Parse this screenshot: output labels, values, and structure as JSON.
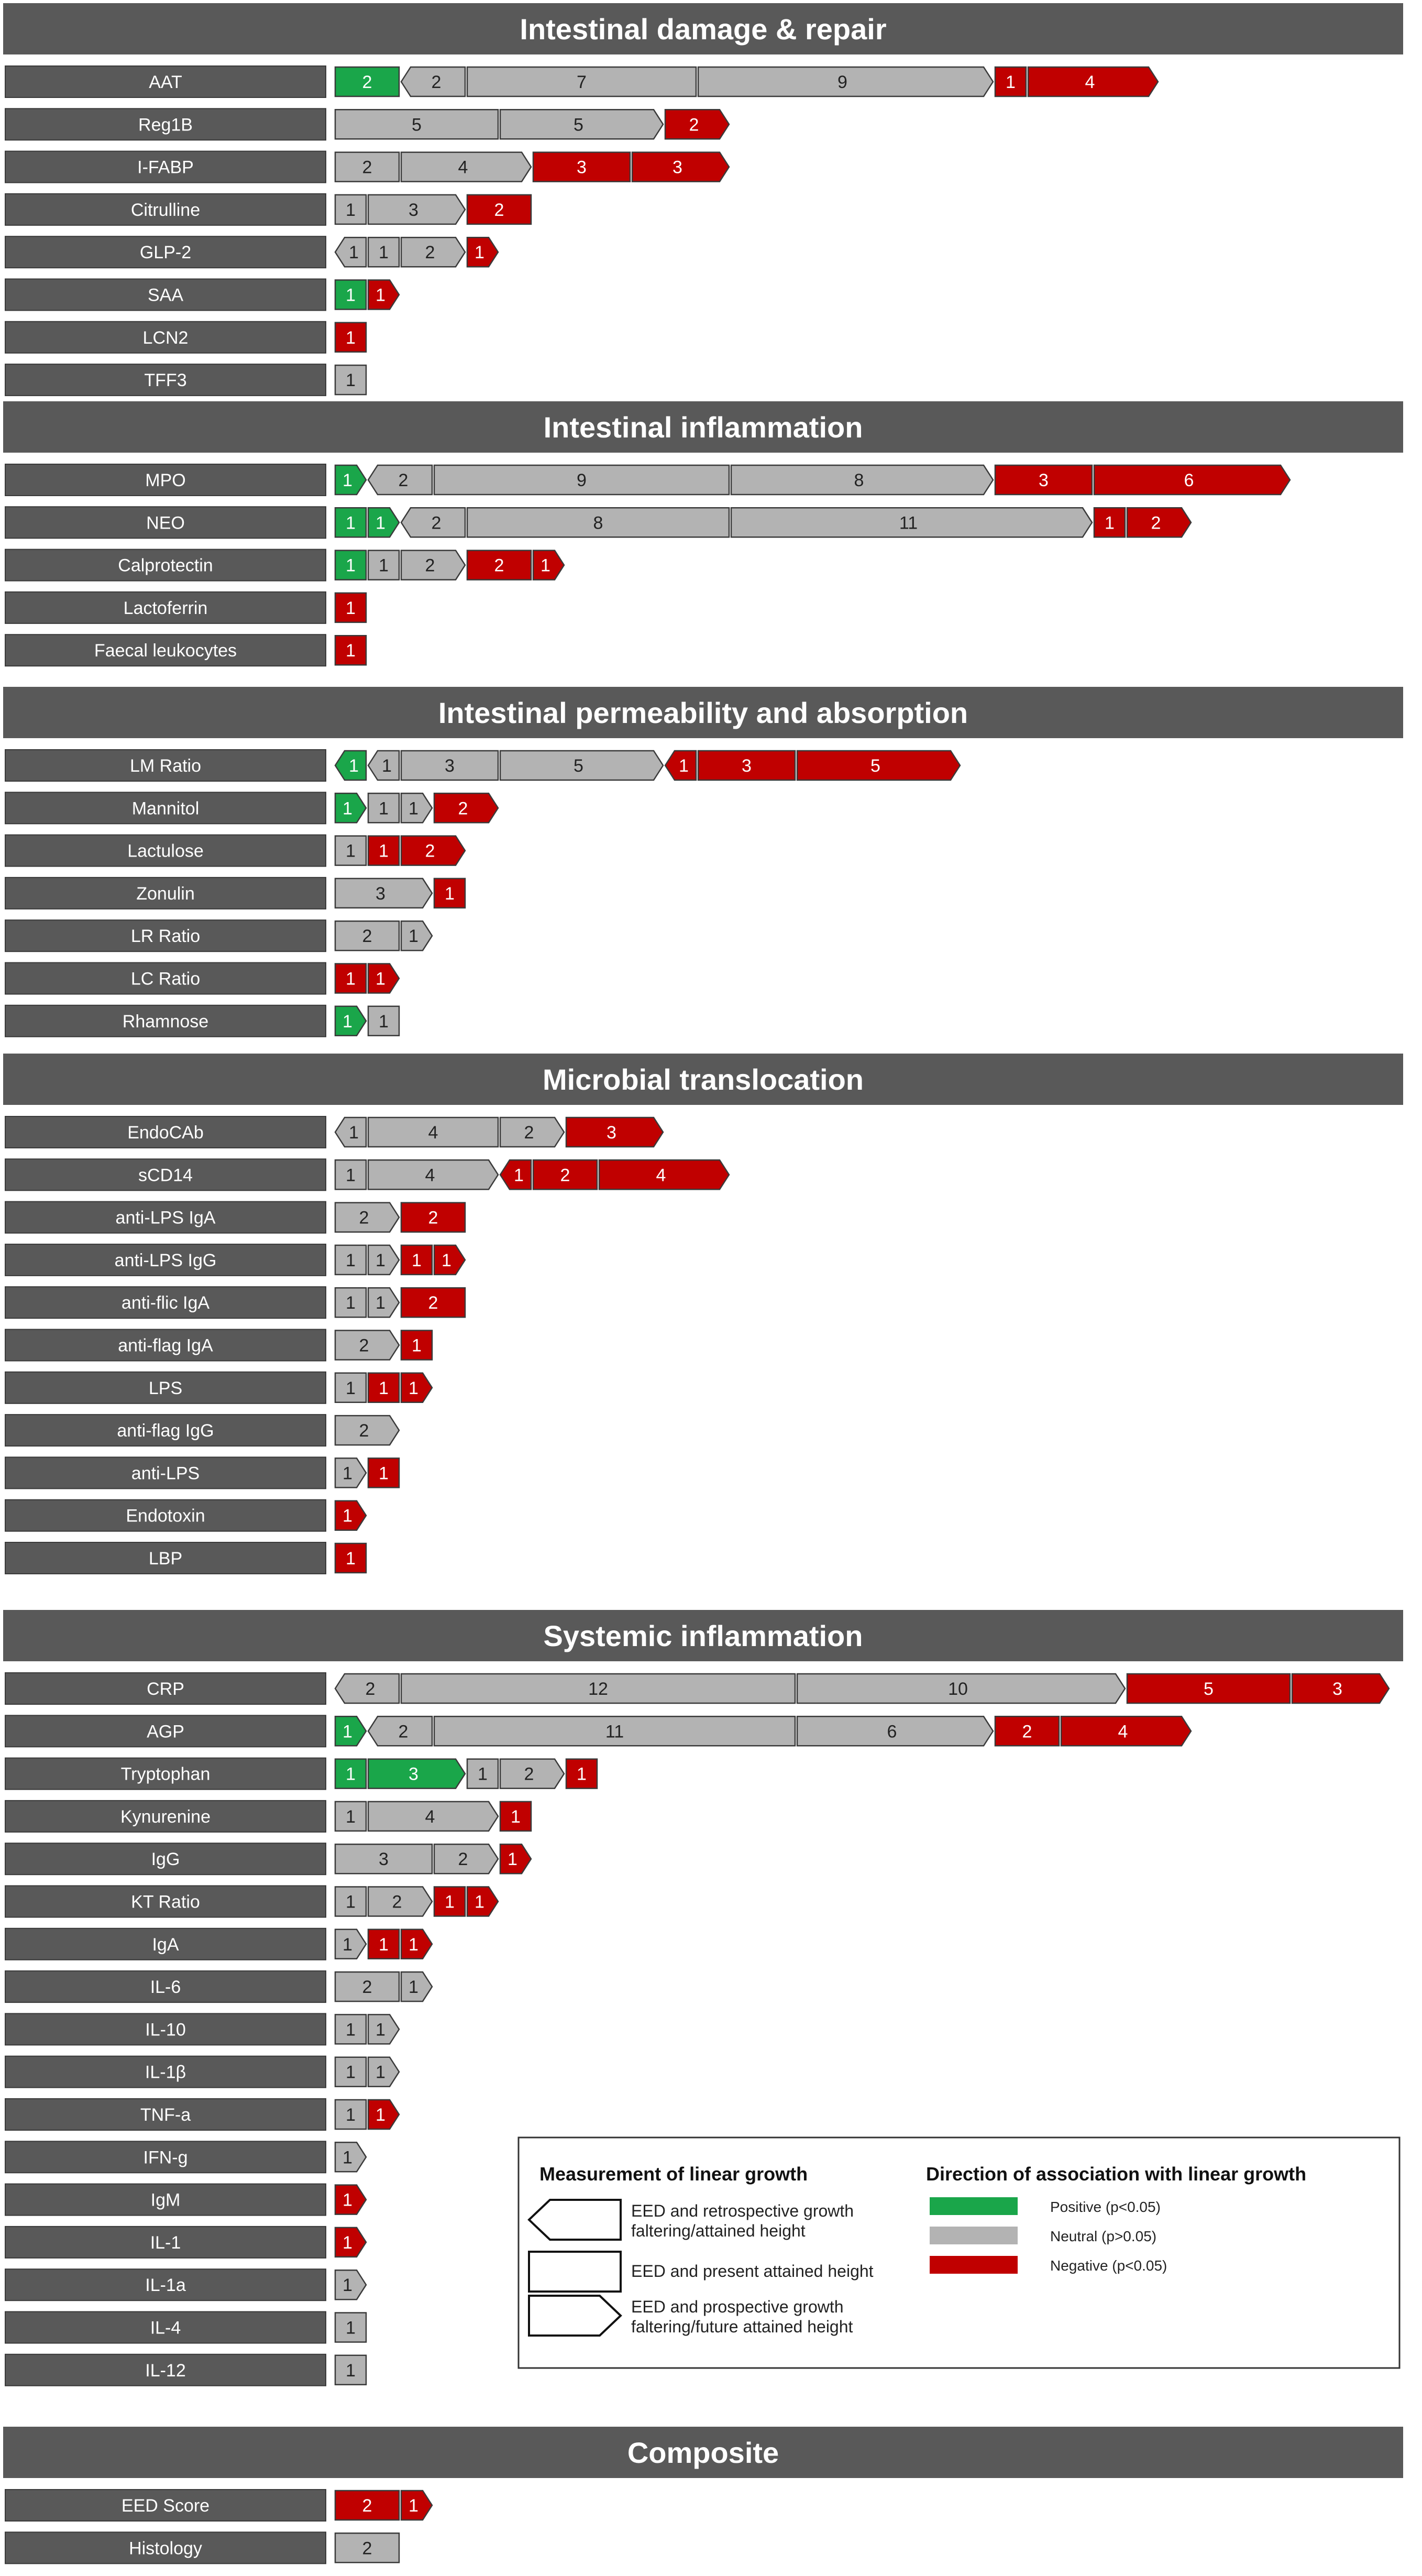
{
  "colors": {
    "positive": "#1aa64a",
    "neutral": "#b3b3b3",
    "negative": "#c00000",
    "panel": "#595959",
    "label_bg": "#595959"
  },
  "legend": {
    "measurement_title": "Measurement of linear growth",
    "direction_title": "Direction of association with linear growth",
    "measurements": [
      {
        "shape": "left",
        "line1": "EED and retrospective growth",
        "line2": "faltering/attained height"
      },
      {
        "shape": "rect",
        "line1": "EED and present attained height",
        "line2": ""
      },
      {
        "shape": "right",
        "line1": "EED and prospective growth",
        "line2": "faltering/future attained height"
      }
    ],
    "directions": [
      {
        "color": "positive",
        "label": "Positive (p<0.05)"
      },
      {
        "color": "neutral",
        "label": "Neutral (p>0.05)"
      },
      {
        "color": "negative",
        "label": "Negative (p<0.05)"
      }
    ]
  },
  "chart_data": {
    "type": "bar",
    "title": "",
    "xlabel": "",
    "ylabel": "",
    "value_units": "number of studies",
    "segment_order": "retrospective (left arrow) | present (rectangle) | prospective (right arrow); within each: positive, neutral, negative",
    "sections": [
      {
        "title": "Intestinal damage & repair",
        "rows": [
          {
            "label": "AAT",
            "segments": [
              [
                "P",
                "pos",
                2
              ],
              [
                "L",
                "neu",
                2
              ],
              [
                "P",
                "neu",
                7
              ],
              [
                "R",
                "neu",
                9
              ],
              [
                "P",
                "neg",
                1
              ],
              [
                "R",
                "neg",
                4
              ]
            ]
          },
          {
            "label": "Reg1B",
            "segments": [
              [
                "P",
                "neu",
                5
              ],
              [
                "R",
                "neu",
                5
              ],
              [
                "R",
                "neg",
                2
              ]
            ]
          },
          {
            "label": "I-FABP",
            "segments": [
              [
                "P",
                "neu",
                2
              ],
              [
                "R",
                "neu",
                4
              ],
              [
                "P",
                "neg",
                3
              ],
              [
                "R",
                "neg",
                3
              ]
            ]
          },
          {
            "label": "Citrulline",
            "segments": [
              [
                "P",
                "neu",
                1
              ],
              [
                "R",
                "neu",
                3
              ],
              [
                "P",
                "neg",
                2
              ]
            ]
          },
          {
            "label": "GLP-2",
            "segments": [
              [
                "L",
                "neu",
                1
              ],
              [
                "P",
                "neu",
                1
              ],
              [
                "R",
                "neu",
                2
              ],
              [
                "R",
                "neg",
                1
              ]
            ]
          },
          {
            "label": "SAA",
            "segments": [
              [
                "P",
                "pos",
                1
              ],
              [
                "R",
                "neg",
                1
              ]
            ]
          },
          {
            "label": "LCN2",
            "segments": [
              [
                "P",
                "neg",
                1
              ]
            ]
          },
          {
            "label": "TFF3",
            "segments": [
              [
                "P",
                "neu",
                1
              ]
            ]
          }
        ]
      },
      {
        "title": "Intestinal inflammation",
        "rows": [
          {
            "label": "MPO",
            "segments": [
              [
                "R",
                "pos",
                1
              ],
              [
                "L",
                "neu",
                2
              ],
              [
                "P",
                "neu",
                9
              ],
              [
                "R",
                "neu",
                8
              ],
              [
                "P",
                "neg",
                3
              ],
              [
                "R",
                "neg",
                6
              ]
            ]
          },
          {
            "label": "NEO",
            "segments": [
              [
                "P",
                "pos",
                1
              ],
              [
                "R",
                "pos",
                1
              ],
              [
                "L",
                "neu",
                2
              ],
              [
                "P",
                "neu",
                8
              ],
              [
                "R",
                "neu",
                11
              ],
              [
                "P",
                "neg",
                1
              ],
              [
                "R",
                "neg",
                2
              ]
            ]
          },
          {
            "label": "Calprotectin",
            "segments": [
              [
                "P",
                "pos",
                1
              ],
              [
                "P",
                "neu",
                1
              ],
              [
                "R",
                "neu",
                2
              ],
              [
                "P",
                "neg",
                2
              ],
              [
                "R",
                "neg",
                1
              ]
            ]
          },
          {
            "label": "Lactoferrin",
            "segments": [
              [
                "P",
                "neg",
                1
              ]
            ]
          },
          {
            "label": "Faecal leukocytes",
            "segments": [
              [
                "P",
                "neg",
                1
              ]
            ]
          }
        ]
      },
      {
        "title": "Intestinal permeability and absorption",
        "rows": [
          {
            "label": "LM Ratio",
            "segments": [
              [
                "L",
                "pos",
                1
              ],
              [
                "L",
                "neu",
                1
              ],
              [
                "P",
                "neu",
                3
              ],
              [
                "R",
                "neu",
                5
              ],
              [
                "L",
                "neg",
                1
              ],
              [
                "P",
                "neg",
                3
              ],
              [
                "R",
                "neg",
                5
              ]
            ]
          },
          {
            "label": "Mannitol",
            "segments": [
              [
                "R",
                "pos",
                1
              ],
              [
                "P",
                "neu",
                1
              ],
              [
                "R",
                "neu",
                1
              ],
              [
                "R",
                "neg",
                2
              ]
            ]
          },
          {
            "label": "Lactulose",
            "segments": [
              [
                "P",
                "neu",
                1
              ],
              [
                "P",
                "neg",
                1
              ],
              [
                "R",
                "neg",
                2
              ]
            ]
          },
          {
            "label": "Zonulin",
            "segments": [
              [
                "R",
                "neu",
                3
              ],
              [
                "P",
                "neg",
                1
              ]
            ]
          },
          {
            "label": "LR Ratio",
            "segments": [
              [
                "P",
                "neu",
                2
              ],
              [
                "R",
                "neu",
                1
              ]
            ]
          },
          {
            "label": "LC Ratio",
            "segments": [
              [
                "P",
                "neg",
                1
              ],
              [
                "R",
                "neg",
                1
              ]
            ]
          },
          {
            "label": "Rhamnose",
            "segments": [
              [
                "R",
                "pos",
                1
              ],
              [
                "P",
                "neu",
                1
              ]
            ]
          }
        ]
      },
      {
        "title": "Microbial translocation",
        "rows": [
          {
            "label": "EndoCAb",
            "segments": [
              [
                "L",
                "neu",
                1
              ],
              [
                "P",
                "neu",
                4
              ],
              [
                "R",
                "neu",
                2
              ],
              [
                "R",
                "neg",
                3
              ]
            ]
          },
          {
            "label": "sCD14",
            "segments": [
              [
                "P",
                "neu",
                1
              ],
              [
                "R",
                "neu",
                4
              ],
              [
                "L",
                "neg",
                1
              ],
              [
                "P",
                "neg",
                2
              ],
              [
                "R",
                "neg",
                4
              ]
            ]
          },
          {
            "label": "anti-LPS IgA",
            "segments": [
              [
                "R",
                "neu",
                2
              ],
              [
                "P",
                "neg",
                2
              ]
            ]
          },
          {
            "label": "anti-LPS IgG",
            "segments": [
              [
                "P",
                "neu",
                1
              ],
              [
                "R",
                "neu",
                1
              ],
              [
                "P",
                "neg",
                1
              ],
              [
                "R",
                "neg",
                1
              ]
            ]
          },
          {
            "label": "anti-flic IgA",
            "segments": [
              [
                "P",
                "neu",
                1
              ],
              [
                "R",
                "neu",
                1
              ],
              [
                "P",
                "neg",
                2
              ]
            ]
          },
          {
            "label": "anti-flag IgA",
            "segments": [
              [
                "R",
                "neu",
                2
              ],
              [
                "P",
                "neg",
                1
              ]
            ]
          },
          {
            "label": "LPS",
            "segments": [
              [
                "P",
                "neu",
                1
              ],
              [
                "P",
                "neg",
                1
              ],
              [
                "R",
                "neg",
                1
              ]
            ]
          },
          {
            "label": "anti-flag IgG",
            "segments": [
              [
                "R",
                "neu",
                2
              ]
            ]
          },
          {
            "label": "anti-LPS",
            "segments": [
              [
                "R",
                "neu",
                1
              ],
              [
                "P",
                "neg",
                1
              ]
            ]
          },
          {
            "label": "Endotoxin",
            "segments": [
              [
                "R",
                "neg",
                1
              ]
            ]
          },
          {
            "label": "LBP",
            "segments": [
              [
                "P",
                "neg",
                1
              ]
            ]
          }
        ]
      },
      {
        "title": "Systemic inflammation",
        "rows": [
          {
            "label": "CRP",
            "segments": [
              [
                "L",
                "neu",
                2
              ],
              [
                "P",
                "neu",
                12
              ],
              [
                "R",
                "neu",
                10
              ],
              [
                "P",
                "neg",
                5
              ],
              [
                "R",
                "neg",
                3
              ]
            ]
          },
          {
            "label": "AGP",
            "segments": [
              [
                "R",
                "pos",
                1
              ],
              [
                "L",
                "neu",
                2
              ],
              [
                "P",
                "neu",
                11
              ],
              [
                "R",
                "neu",
                6
              ],
              [
                "P",
                "neg",
                2
              ],
              [
                "R",
                "neg",
                4
              ]
            ]
          },
          {
            "label": "Tryptophan",
            "segments": [
              [
                "P",
                "pos",
                1
              ],
              [
                "R",
                "pos",
                3
              ],
              [
                "P",
                "neu",
                1
              ],
              [
                "R",
                "neu",
                2
              ],
              [
                "P",
                "neg",
                1
              ]
            ]
          },
          {
            "label": "Kynurenine",
            "segments": [
              [
                "P",
                "neu",
                1
              ],
              [
                "R",
                "neu",
                4
              ],
              [
                "P",
                "neg",
                1
              ]
            ]
          },
          {
            "label": "IgG",
            "segments": [
              [
                "P",
                "neu",
                3
              ],
              [
                "R",
                "neu",
                2
              ],
              [
                "R",
                "neg",
                1
              ]
            ]
          },
          {
            "label": "KT Ratio",
            "segments": [
              [
                "P",
                "neu",
                1
              ],
              [
                "R",
                "neu",
                2
              ],
              [
                "P",
                "neg",
                1
              ],
              [
                "R",
                "neg",
                1
              ]
            ]
          },
          {
            "label": "IgA",
            "segments": [
              [
                "R",
                "neu",
                1
              ],
              [
                "P",
                "neg",
                1
              ],
              [
                "R",
                "neg",
                1
              ]
            ]
          },
          {
            "label": "IL-6",
            "segments": [
              [
                "P",
                "neu",
                2
              ],
              [
                "R",
                "neu",
                1
              ]
            ]
          },
          {
            "label": "IL-10",
            "segments": [
              [
                "P",
                "neu",
                1
              ],
              [
                "R",
                "neu",
                1
              ]
            ]
          },
          {
            "label": "IL-1β",
            "segments": [
              [
                "P",
                "neu",
                1
              ],
              [
                "R",
                "neu",
                1
              ]
            ]
          },
          {
            "label": "TNF-a",
            "segments": [
              [
                "P",
                "neu",
                1
              ],
              [
                "R",
                "neg",
                1
              ]
            ]
          },
          {
            "label": "IFN-g",
            "segments": [
              [
                "R",
                "neu",
                1
              ]
            ]
          },
          {
            "label": "IgM",
            "segments": [
              [
                "R",
                "neg",
                1
              ]
            ]
          },
          {
            "label": "IL-1",
            "segments": [
              [
                "R",
                "neg",
                1
              ]
            ]
          },
          {
            "label": "IL-1a",
            "segments": [
              [
                "R",
                "neu",
                1
              ]
            ]
          },
          {
            "label": "IL-4",
            "segments": [
              [
                "P",
                "neu",
                1
              ]
            ]
          },
          {
            "label": "IL-12",
            "segments": [
              [
                "P",
                "neu",
                1
              ]
            ]
          }
        ]
      },
      {
        "title": "Composite",
        "rows": [
          {
            "label": "EED Score",
            "segments": [
              [
                "P",
                "neg",
                2
              ],
              [
                "R",
                "neg",
                1
              ]
            ]
          },
          {
            "label": "Histology",
            "segments": [
              [
                "P",
                "neu",
                2
              ]
            ]
          }
        ]
      }
    ]
  }
}
